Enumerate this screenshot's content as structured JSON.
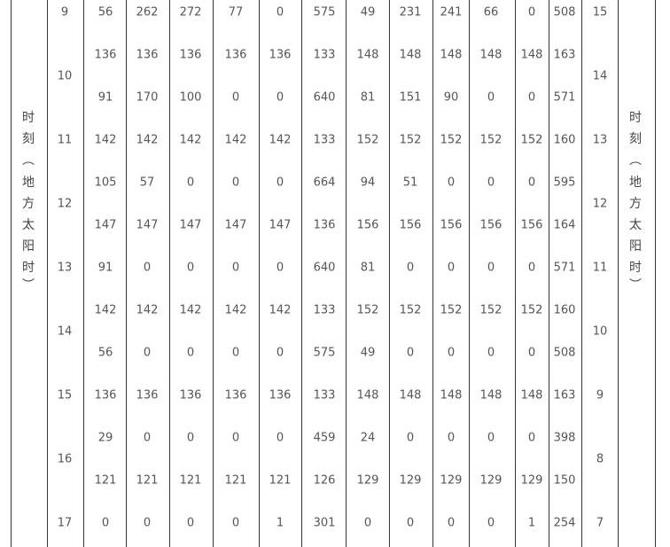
{
  "left_label_chars": [
    "时",
    "刻",
    "︵",
    "地",
    "方",
    "太",
    "阳",
    "时",
    "︶"
  ],
  "right_label_chars": [
    "时",
    "刻",
    "︵",
    "地",
    "方",
    "太",
    "阳",
    "时",
    "︶"
  ],
  "left_hours": [
    {
      "label": "9",
      "pos": 0
    },
    {
      "label": "10",
      "pos": 1.5
    },
    {
      "label": "11",
      "pos": 3
    },
    {
      "label": "12",
      "pos": 4.5
    },
    {
      "label": "13",
      "pos": 6
    },
    {
      "label": "14",
      "pos": 7.5
    },
    {
      "label": "15",
      "pos": 9
    },
    {
      "label": "16",
      "pos": 10.5
    },
    {
      "label": "17",
      "pos": 12
    }
  ],
  "right_hours": [
    {
      "label": "15",
      "pos": 0
    },
    {
      "label": "14",
      "pos": 1.5
    },
    {
      "label": "13",
      "pos": 3
    },
    {
      "label": "12",
      "pos": 4.5
    },
    {
      "label": "11",
      "pos": 6
    },
    {
      "label": "10",
      "pos": 7.5
    },
    {
      "label": "9",
      "pos": 9
    },
    {
      "label": "8",
      "pos": 10.5
    },
    {
      "label": "7",
      "pos": 12
    }
  ],
  "rows": [
    [
      "56",
      "262",
      "272",
      "77",
      "0",
      "575",
      "49",
      "231",
      "241",
      "66",
      "0",
      "508"
    ],
    [
      "136",
      "136",
      "136",
      "136",
      "136",
      "133",
      "148",
      "148",
      "148",
      "148",
      "148",
      "163"
    ],
    [
      "91",
      "170",
      "100",
      "0",
      "0",
      "640",
      "81",
      "151",
      "90",
      "0",
      "0",
      "571"
    ],
    [
      "142",
      "142",
      "142",
      "142",
      "142",
      "133",
      "152",
      "152",
      "152",
      "152",
      "152",
      "160"
    ],
    [
      "105",
      "57",
      "0",
      "0",
      "0",
      "664",
      "94",
      "51",
      "0",
      "0",
      "0",
      "595"
    ],
    [
      "147",
      "147",
      "147",
      "147",
      "147",
      "136",
      "156",
      "156",
      "156",
      "156",
      "156",
      "164"
    ],
    [
      "91",
      "0",
      "0",
      "0",
      "0",
      "640",
      "81",
      "0",
      "0",
      "0",
      "0",
      "571"
    ],
    [
      "142",
      "142",
      "142",
      "142",
      "142",
      "133",
      "152",
      "152",
      "152",
      "152",
      "152",
      "160"
    ],
    [
      "56",
      "0",
      "0",
      "0",
      "0",
      "575",
      "49",
      "0",
      "0",
      "0",
      "0",
      "508"
    ],
    [
      "136",
      "136",
      "136",
      "136",
      "136",
      "133",
      "148",
      "148",
      "148",
      "148",
      "148",
      "163"
    ],
    [
      "29",
      "0",
      "0",
      "0",
      "0",
      "459",
      "24",
      "0",
      "0",
      "0",
      "0",
      "398"
    ],
    [
      "121",
      "121",
      "121",
      "121",
      "121",
      "126",
      "129",
      "129",
      "129",
      "129",
      "129",
      "150"
    ],
    [
      "0",
      "0",
      "0",
      "0",
      "1",
      "301",
      "0",
      "0",
      "0",
      "0",
      "1",
      "254"
    ]
  ]
}
